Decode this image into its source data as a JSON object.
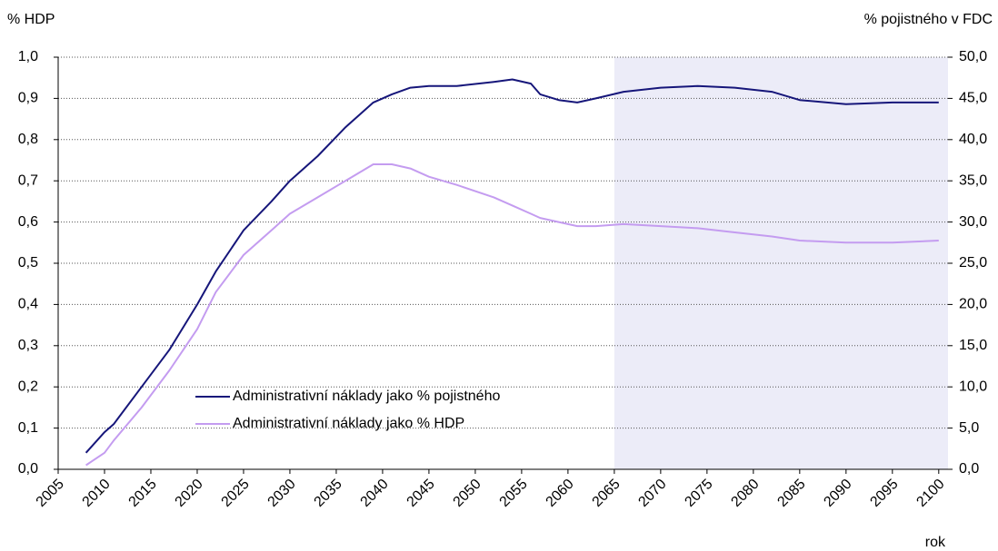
{
  "chart_data": {
    "type": "line",
    "ylabel": "% HDP",
    "y2label": "% pojistného v FDC",
    "xlabel": "rok",
    "x": [
      2008,
      2010,
      2011,
      2014,
      2017,
      2020,
      2022,
      2025,
      2028,
      2030,
      2033,
      2036,
      2039,
      2041,
      2043,
      2045,
      2048,
      2052,
      2054,
      2056,
      2057,
      2059,
      2061,
      2063,
      2066,
      2070,
      2074,
      2078,
      2082,
      2085,
      2090,
      2095,
      2100
    ],
    "series": [
      {
        "name": "Administrativní náklady jako % pojistného",
        "color": "#16167a",
        "axis": "y2",
        "values": [
          2.0,
          4.5,
          5.5,
          10.0,
          14.5,
          20.0,
          24.0,
          29.0,
          32.5,
          35.0,
          38.0,
          41.5,
          44.5,
          45.5,
          46.3,
          46.5,
          46.5,
          47.0,
          47.3,
          46.8,
          45.5,
          44.8,
          44.5,
          45.0,
          45.8,
          46.3,
          46.5,
          46.3,
          45.8,
          44.8,
          44.3,
          44.5,
          44.5
        ]
      },
      {
        "name": "Administrativní náklady jako % HDP",
        "color": "#c49cf0",
        "values": [
          0.01,
          0.04,
          0.07,
          0.15,
          0.24,
          0.34,
          0.43,
          0.52,
          0.58,
          0.62,
          0.66,
          0.7,
          0.74,
          0.74,
          0.73,
          0.71,
          0.69,
          0.66,
          0.64,
          0.62,
          0.61,
          0.6,
          0.59,
          0.59,
          0.595,
          0.59,
          0.585,
          0.575,
          0.565,
          0.555,
          0.55,
          0.55,
          0.555
        ]
      }
    ],
    "xlim": [
      2005,
      2101
    ],
    "xticks": [
      2005,
      2010,
      2015,
      2020,
      2025,
      2030,
      2035,
      2040,
      2045,
      2050,
      2055,
      2060,
      2065,
      2070,
      2075,
      2080,
      2085,
      2090,
      2095,
      2100
    ],
    "ylim": [
      0,
      1
    ],
    "yticks": [
      {
        "value": 0,
        "label": "0,0"
      },
      {
        "value": 0.1,
        "label": "0,1"
      },
      {
        "value": 0.2,
        "label": "0,2"
      },
      {
        "value": 0.3,
        "label": "0,3"
      },
      {
        "value": 0.4,
        "label": "0,4"
      },
      {
        "value": 0.5,
        "label": "0,5"
      },
      {
        "value": 0.6,
        "label": "0,6"
      },
      {
        "value": 0.7,
        "label": "0,7"
      },
      {
        "value": 0.8,
        "label": "0,8"
      },
      {
        "value": 0.9,
        "label": "0,9"
      },
      {
        "value": 1,
        "label": "1,0"
      }
    ],
    "y2lim": [
      0,
      50
    ],
    "y2ticks": [
      {
        "value": 0,
        "label": "0,0"
      },
      {
        "value": 5,
        "label": "5,0"
      },
      {
        "value": 10,
        "label": "10,0"
      },
      {
        "value": 15,
        "label": "15,0"
      },
      {
        "value": 20,
        "label": "20,0"
      },
      {
        "value": 25,
        "label": "25,0"
      },
      {
        "value": 30,
        "label": "30,0"
      },
      {
        "value": 35,
        "label": "35,0"
      },
      {
        "value": 40,
        "label": "40,0"
      },
      {
        "value": 45,
        "label": "45,0"
      },
      {
        "value": 50,
        "label": "50,0"
      }
    ],
    "shade_from": 2065,
    "shade_color": "#ececf8",
    "grid": true,
    "legend": "lower left"
  }
}
